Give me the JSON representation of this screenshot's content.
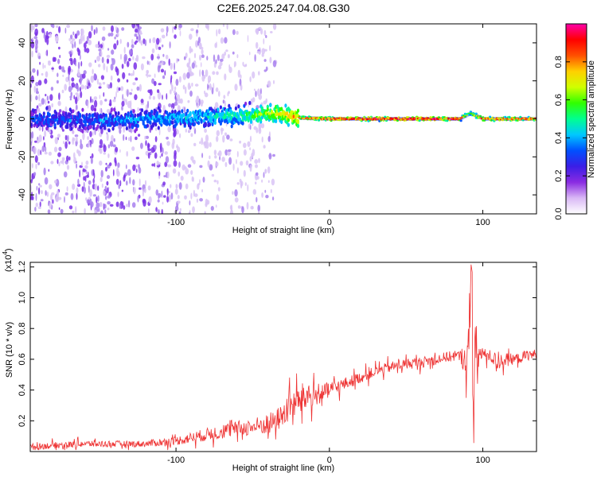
{
  "chart_data": [
    {
      "type": "heatmap",
      "title": "C2E6.2025.247.04.08.G30",
      "xlabel": "Height of straight line (km)",
      "ylabel": "Frequency (Hz)",
      "xlim": [
        -195,
        135
      ],
      "ylim": [
        -50,
        50
      ],
      "xticks": [
        -100,
        0,
        100
      ],
      "xtick_labels": [
        "-100",
        "0",
        "100"
      ],
      "yticks": [
        -40,
        -20,
        0,
        20,
        40
      ],
      "ytick_labels": [
        "-40",
        "-20",
        "0",
        "20",
        "40"
      ],
      "colorbar": {
        "label": "Normalized spectral amplitude",
        "range": [
          0,
          1
        ],
        "ticks": [
          0.0,
          0.2,
          0.4,
          0.6,
          0.8
        ],
        "tick_labels": [
          "0.0",
          "0.2",
          "0.4",
          "0.6",
          "0.8"
        ],
        "colors": [
          "#ffffff",
          "#d9b8f5",
          "#8a2be2",
          "#3a1ee6",
          "#0050ff",
          "#00c8ff",
          "#00ff90",
          "#30ff00",
          "#d0ff00",
          "#ffd000",
          "#ff5000",
          "#ff0000",
          "#ff00aa"
        ]
      },
      "ridge": [
        {
          "x": -195,
          "y": 0.0,
          "amp": 0.3
        },
        {
          "x": -150,
          "y": -1.0,
          "amp": 0.35
        },
        {
          "x": -110,
          "y": 0.0,
          "amp": 0.4
        },
        {
          "x": -80,
          "y": 1.0,
          "amp": 0.45
        },
        {
          "x": -50,
          "y": 2.0,
          "amp": 0.55
        },
        {
          "x": -35,
          "y": 3.0,
          "amp": 0.7
        },
        {
          "x": -20,
          "y": 0.5,
          "amp": 0.8
        },
        {
          "x": 0,
          "y": 0.0,
          "amp": 0.9
        },
        {
          "x": 50,
          "y": 0.0,
          "amp": 0.95
        },
        {
          "x": 85,
          "y": 0.0,
          "amp": 0.9
        },
        {
          "x": 92,
          "y": 3.0,
          "amp": 0.6
        },
        {
          "x": 100,
          "y": 0.0,
          "amp": 0.9
        },
        {
          "x": 135,
          "y": 0.0,
          "amp": 0.85
        }
      ]
    },
    {
      "type": "line",
      "xlabel": "Height of straight line (km)",
      "ylabel": "SNR (10 * v/v)",
      "scale_note": "(x10",
      "scale_exp": "4",
      "scale_close": ")",
      "xlim": [
        -195,
        135
      ],
      "ylim": [
        0.0,
        1.23
      ],
      "xticks": [
        -100,
        0,
        100
      ],
      "xtick_labels": [
        "-100",
        "0",
        "100"
      ],
      "yticks": [
        0.2,
        0.4,
        0.6,
        0.8,
        1.0,
        1.2
      ],
      "ytick_labels": [
        "0.2",
        "0.4",
        "0.6",
        "0.8",
        "1.0",
        "1.2"
      ],
      "series": [
        {
          "name": "SNR",
          "color": "#ee3333",
          "x": [
            -195,
            -180,
            -160,
            -140,
            -120,
            -100,
            -90,
            -80,
            -70,
            -60,
            -50,
            -40,
            -35,
            -30,
            -25,
            -20,
            -15,
            -10,
            -5,
            0,
            10,
            20,
            30,
            40,
            50,
            60,
            70,
            80,
            85,
            90,
            92,
            94,
            96,
            98,
            100,
            105,
            110,
            115,
            120,
            125,
            130,
            135
          ],
          "values": [
            0.03,
            0.04,
            0.05,
            0.05,
            0.05,
            0.07,
            0.09,
            0.11,
            0.13,
            0.15,
            0.16,
            0.18,
            0.2,
            0.24,
            0.3,
            0.33,
            0.36,
            0.36,
            0.38,
            0.4,
            0.44,
            0.48,
            0.52,
            0.55,
            0.57,
            0.58,
            0.6,
            0.62,
            0.62,
            0.6,
            0.64,
            0.5,
            0.62,
            0.64,
            0.63,
            0.62,
            0.58,
            0.6,
            0.6,
            0.61,
            0.63,
            0.63
          ],
          "noise": [
            0.03,
            0.03,
            0.03,
            0.03,
            0.03,
            0.04,
            0.05,
            0.06,
            0.07,
            0.07,
            0.08,
            0.1,
            0.1,
            0.12,
            0.13,
            0.14,
            0.15,
            0.1,
            0.08,
            0.08,
            0.06,
            0.05,
            0.05,
            0.05,
            0.05,
            0.05,
            0.05,
            0.05,
            0.05,
            0.2,
            0.55,
            0.45,
            0.3,
            0.08,
            0.06,
            0.06,
            0.08,
            0.06,
            0.05,
            0.05,
            0.05,
            0.05
          ]
        }
      ]
    }
  ]
}
